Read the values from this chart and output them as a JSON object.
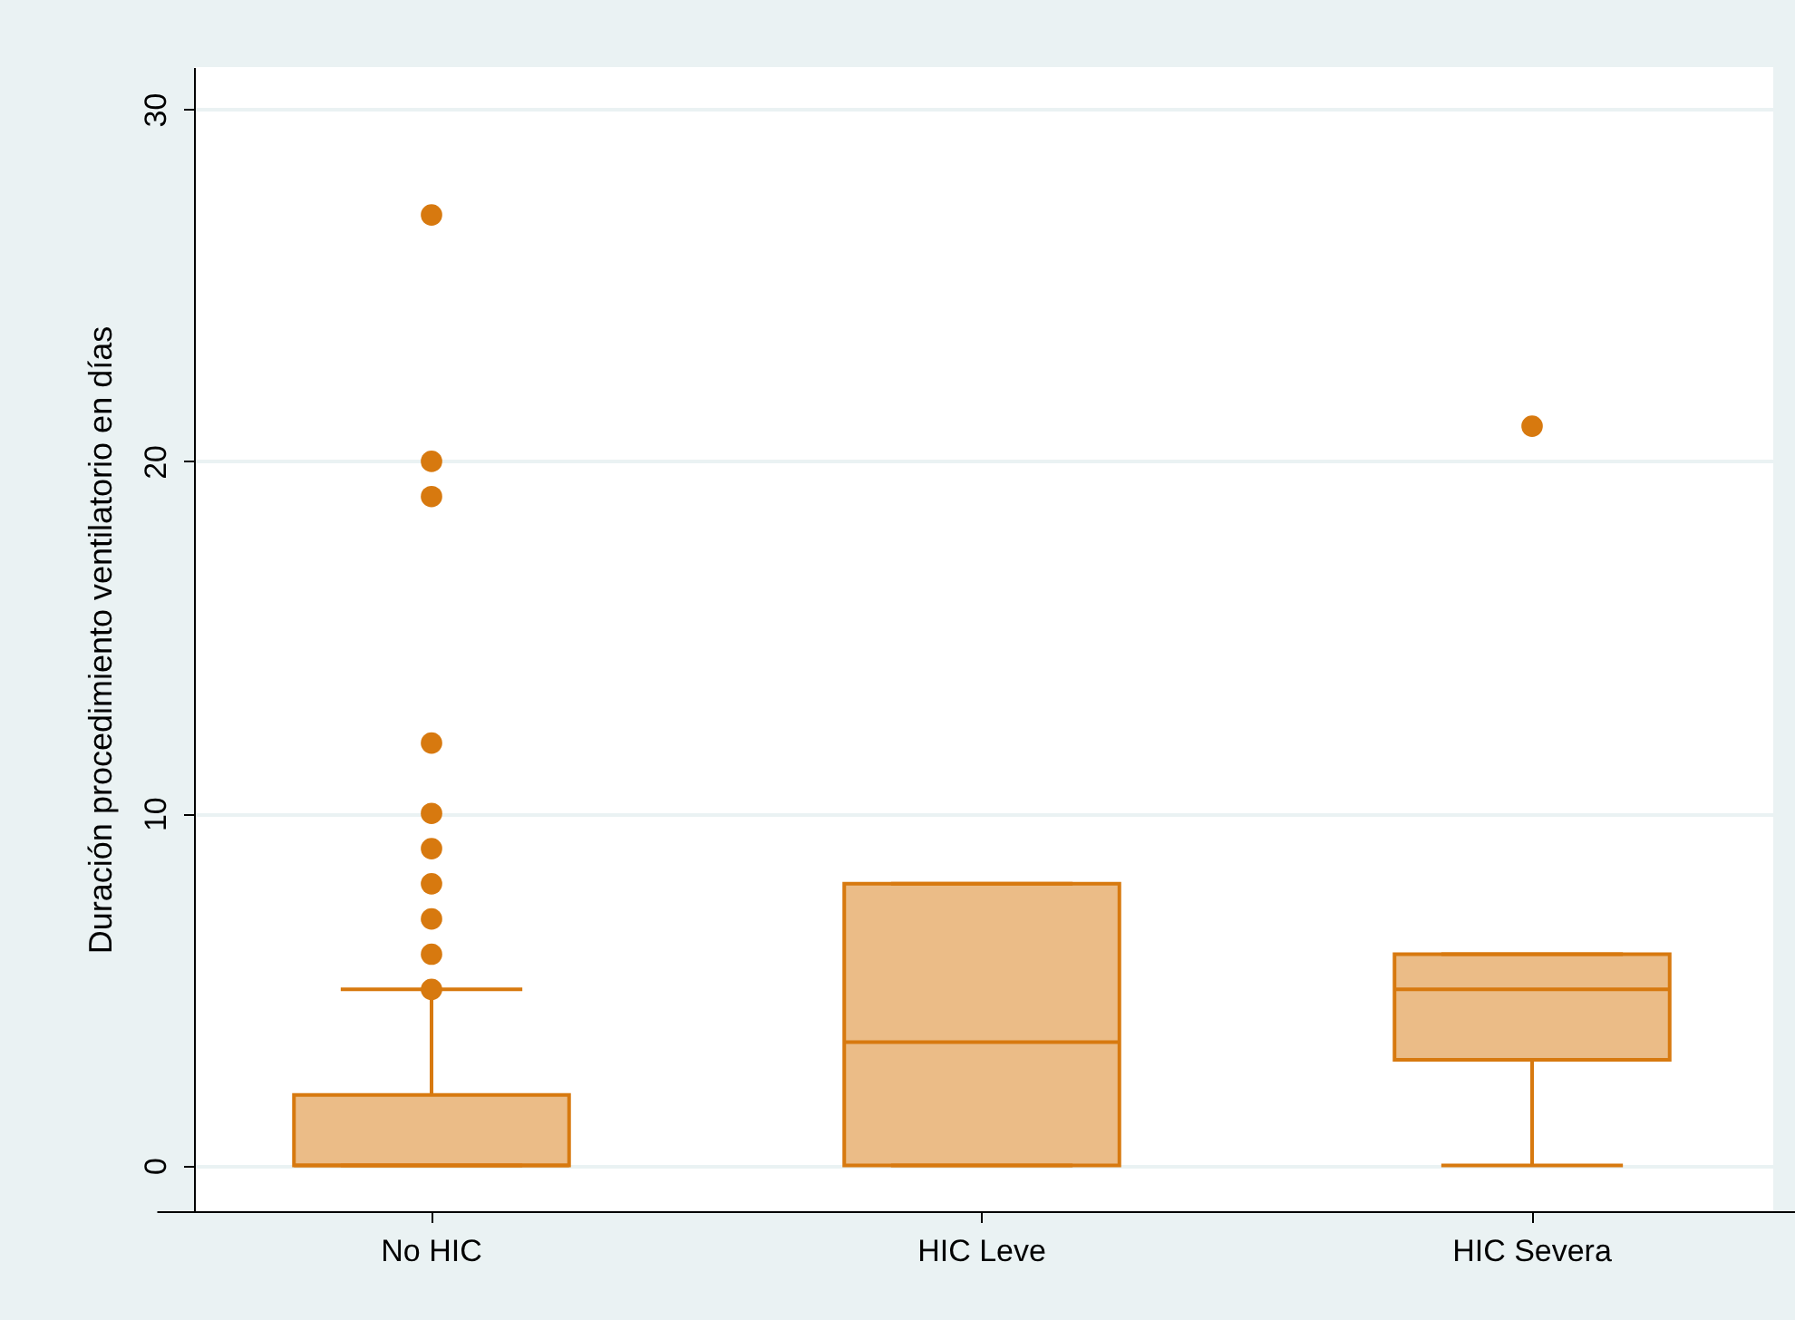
{
  "chart_data": {
    "type": "box",
    "ylabel": "Duración procedimiento ventilatorio en días",
    "categories": [
      "No HIC",
      "HIC Leve",
      "HIC Severa"
    ],
    "ylim": [
      -1.3,
      31.2
    ],
    "yticks": [
      0,
      10,
      20,
      30
    ],
    "grid": "y",
    "series": [
      {
        "color": "#d7790f",
        "boxes": [
          {
            "low": 0,
            "q1": 0,
            "median": 0,
            "q3": 2,
            "high": 5,
            "outliers": [
              5,
              6,
              7,
              8,
              9,
              10,
              12,
              19,
              20,
              27
            ]
          },
          {
            "low": 0,
            "q1": 0,
            "median": 3.5,
            "q3": 8,
            "high": 8
          },
          {
            "low": 0,
            "q1": 3,
            "median": 5,
            "q3": 6,
            "high": 6,
            "outliers": [
              21
            ]
          }
        ]
      }
    ]
  }
}
